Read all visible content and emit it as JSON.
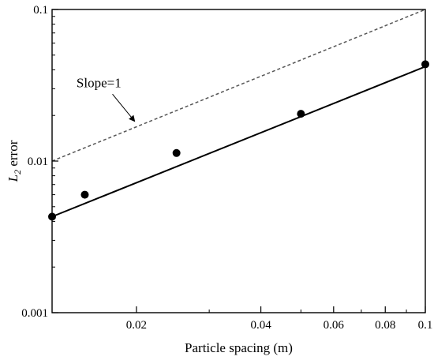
{
  "chart_data": {
    "type": "scatter",
    "title": "",
    "xlabel": "Particle spacing (m)",
    "ylabel_main": "L",
    "ylabel_sub": "2",
    "ylabel_rest": " error",
    "x_scale": "log",
    "y_scale": "log",
    "xlim": [
      0.0125,
      0.1
    ],
    "ylim": [
      0.001,
      0.1
    ],
    "grid": false,
    "x_ticks": [
      {
        "value": 0.02,
        "label": "0.02"
      },
      {
        "value": 0.04,
        "label": "0.04"
      },
      {
        "value": 0.06,
        "label": "0.06"
      },
      {
        "value": 0.08,
        "label": "0.08"
      },
      {
        "value": 0.1,
        "label": "0.1"
      }
    ],
    "x_minor_ticks": [
      0.03,
      0.05,
      0.07,
      0.09
    ],
    "y_ticks": [
      {
        "value": 0.001,
        "label": "0.001"
      },
      {
        "value": 0.01,
        "label": "0.01"
      },
      {
        "value": 0.1,
        "label": "0.1"
      }
    ],
    "y_minor_ticks": [
      0.002,
      0.003,
      0.004,
      0.005,
      0.006,
      0.007,
      0.008,
      0.009,
      0.02,
      0.03,
      0.04,
      0.05,
      0.06,
      0.07,
      0.08,
      0.09
    ],
    "series": [
      {
        "kind": "points",
        "x": [
          0.0125,
          0.015,
          0.025,
          0.05,
          0.1
        ],
        "y": [
          0.0043,
          0.006,
          0.0113,
          0.0205,
          0.0435
        ],
        "color": "#000000"
      },
      {
        "kind": "fit-line",
        "x": [
          0.0125,
          0.1
        ],
        "y": [
          0.0043,
          0.042
        ],
        "color": "#000000",
        "style": "solid"
      },
      {
        "kind": "reference-line",
        "x": [
          0.0125,
          0.1
        ],
        "y": [
          0.01,
          0.1
        ],
        "color": "#555555",
        "style": "dashed"
      }
    ],
    "annotation": {
      "text": "Slope=1",
      "text_at": [
        0.0155,
        0.033
      ],
      "arrow_from": [
        0.0175,
        0.027
      ],
      "arrow_to": [
        0.0198,
        0.0183
      ]
    }
  }
}
